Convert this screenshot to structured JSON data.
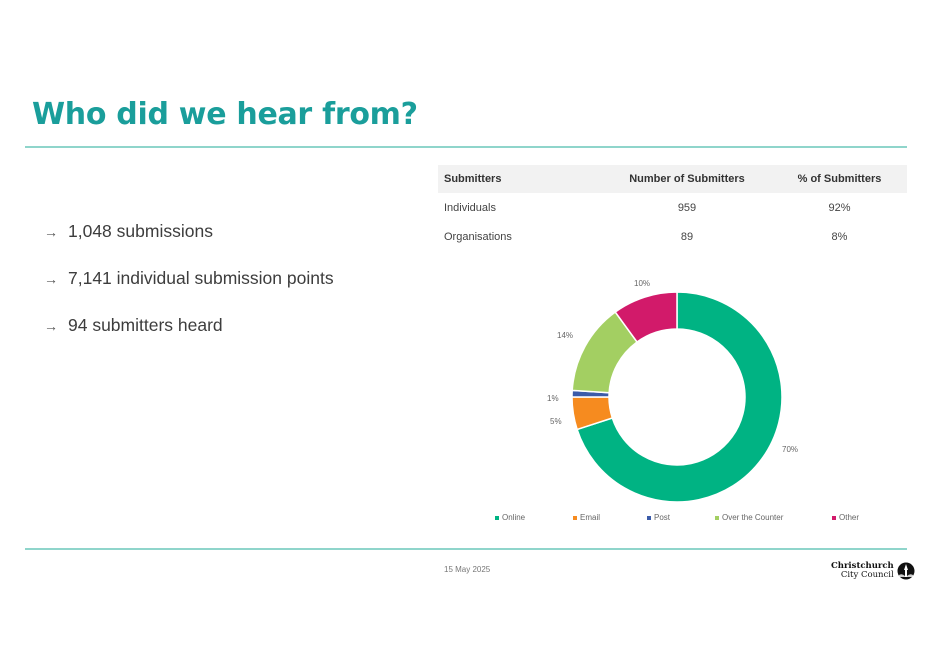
{
  "slide": {
    "title": "Who did we hear from?",
    "bullets": [
      {
        "icon": "arrow-right-icon",
        "glyph": "→",
        "text": "1,048 submissions"
      },
      {
        "icon": "arrow-right-icon",
        "glyph": "→",
        "text": "7,141 individual submission points"
      },
      {
        "icon": "arrow-right-icon",
        "glyph": "→",
        "text": "94 submitters heard"
      }
    ],
    "table": {
      "headers": [
        "Submitters",
        "Number of Submitters",
        "% of Submitters"
      ],
      "rows": [
        [
          "Individuals",
          "959",
          "92%"
        ],
        [
          "Organisations",
          "89",
          "8%"
        ]
      ]
    },
    "footer": {
      "date": "15 May 2025",
      "logo_line1": "Christchurch",
      "logo_line2": "City Council"
    },
    "colors": {
      "title": "#1a9e9b",
      "rule": "#8fd5cb"
    }
  },
  "chart_data": {
    "type": "pie",
    "subtype": "donut",
    "title": "",
    "categories": [
      "Online",
      "Email",
      "Post",
      "Over the Counter",
      "Other"
    ],
    "values": [
      70,
      5,
      1,
      14,
      10
    ],
    "labels": [
      "70%",
      "5%",
      "1%",
      "14%",
      "10%"
    ],
    "colors": [
      "#00b383",
      "#f68b1f",
      "#3b5ba9",
      "#a3cf62",
      "#d21a6a"
    ],
    "legend_position": "bottom",
    "start_angle_deg": 0,
    "direction": "clockwise"
  }
}
